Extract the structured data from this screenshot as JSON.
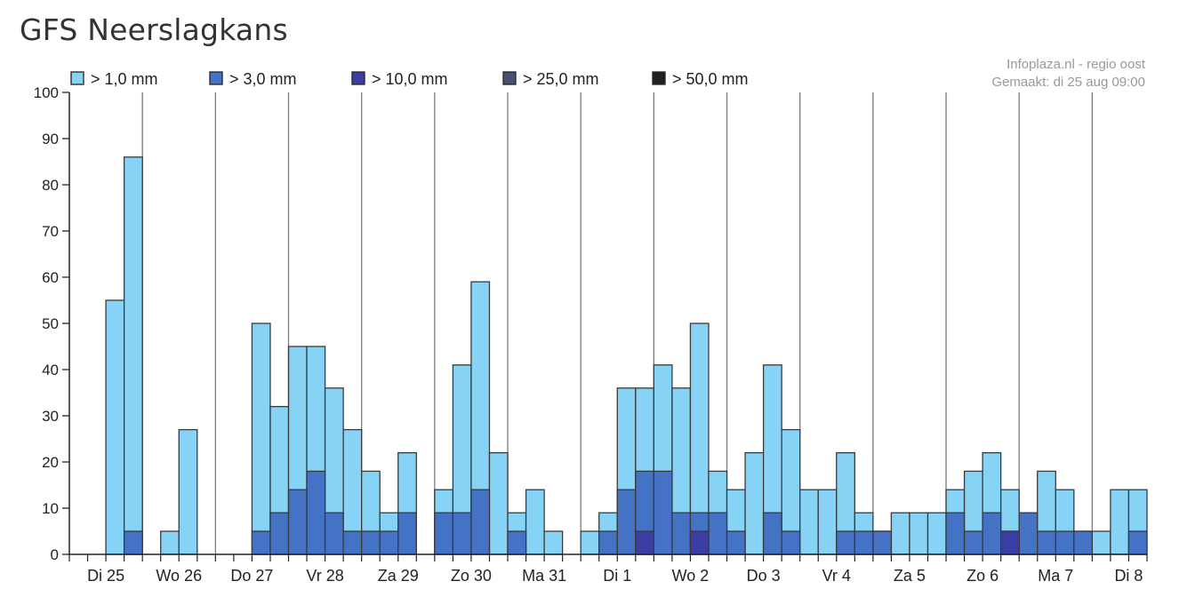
{
  "title": "GFS Neerslagkans",
  "source": "Infoplaza.nl - regio oost",
  "made": "Gemaakt: di 25 aug 09:00",
  "colors": {
    "gt1": "#87d3f5",
    "gt3": "#4472c4",
    "gt10": "#3a3ea4",
    "gt25": "#4a5070",
    "gt50": "#222222"
  },
  "chart_data": {
    "type": "bar",
    "stacked": "overlaid",
    "title": "GFS Neerslagkans",
    "xlabel": "",
    "ylabel": "",
    "ylim": [
      0,
      100
    ],
    "yticks": [
      0,
      10,
      20,
      30,
      40,
      50,
      60,
      70,
      80,
      90,
      100
    ],
    "grid": "vertical day separators",
    "legend_position": "top-left",
    "day_labels": [
      "Di 25",
      "Wo 26",
      "Do 27",
      "Vr 28",
      "Za 29",
      "Zo 30",
      "Ma 31",
      "Di 1",
      "Wo 2",
      "Do 3",
      "Vr 4",
      "Za 5",
      "Zo 6",
      "Ma 7",
      "Di 8"
    ],
    "series": [
      {
        "name": "> 1,0 mm",
        "color_key": "gt1",
        "values": [
          0,
          55,
          86,
          0,
          5,
          27,
          0,
          0,
          0,
          50,
          32,
          45,
          45,
          36,
          27,
          18,
          9,
          22,
          0,
          14,
          41,
          59,
          22,
          9,
          14,
          5,
          0,
          5,
          9,
          36,
          36,
          41,
          36,
          50,
          18,
          14,
          22,
          41,
          27,
          14,
          14,
          22,
          9,
          5,
          9,
          9,
          9,
          14,
          18,
          22,
          14,
          9,
          18,
          14,
          5,
          5,
          14,
          14
        ]
      },
      {
        "name": "> 3,0 mm",
        "color_key": "gt3",
        "values": [
          0,
          0,
          5,
          0,
          0,
          0,
          0,
          0,
          0,
          5,
          9,
          14,
          18,
          9,
          5,
          5,
          5,
          9,
          0,
          9,
          9,
          14,
          0,
          5,
          0,
          0,
          0,
          0,
          5,
          14,
          18,
          18,
          9,
          9,
          9,
          5,
          0,
          9,
          5,
          0,
          0,
          5,
          5,
          5,
          0,
          0,
          0,
          9,
          5,
          9,
          5,
          9,
          5,
          5,
          5,
          0,
          0,
          5
        ]
      },
      {
        "name": "> 10,0 mm",
        "color_key": "gt10",
        "values": [
          0,
          0,
          0,
          0,
          0,
          0,
          0,
          0,
          0,
          0,
          0,
          0,
          0,
          0,
          0,
          0,
          0,
          0,
          0,
          0,
          0,
          0,
          0,
          0,
          0,
          0,
          0,
          0,
          0,
          0,
          5,
          0,
          0,
          5,
          0,
          0,
          0,
          0,
          0,
          0,
          0,
          0,
          0,
          0,
          0,
          0,
          0,
          0,
          0,
          0,
          5,
          0,
          0,
          0,
          0,
          0,
          0,
          0
        ]
      },
      {
        "name": "> 25,0 mm",
        "color_key": "gt25",
        "values": [
          0,
          0,
          0,
          0,
          0,
          0,
          0,
          0,
          0,
          0,
          0,
          0,
          0,
          0,
          0,
          0,
          0,
          0,
          0,
          0,
          0,
          0,
          0,
          0,
          0,
          0,
          0,
          0,
          0,
          0,
          0,
          0,
          0,
          0,
          0,
          0,
          0,
          0,
          0,
          0,
          0,
          0,
          0,
          0,
          0,
          0,
          0,
          0,
          0,
          0,
          0,
          0,
          0,
          0,
          0,
          0,
          0,
          0
        ]
      },
      {
        "name": "> 50,0 mm",
        "color_key": "gt50",
        "values": [
          0,
          0,
          0,
          0,
          0,
          0,
          0,
          0,
          0,
          0,
          0,
          0,
          0,
          0,
          0,
          0,
          0,
          0,
          0,
          0,
          0,
          0,
          0,
          0,
          0,
          0,
          0,
          0,
          0,
          0,
          0,
          0,
          0,
          0,
          0,
          0,
          0,
          0,
          0,
          0,
          0,
          0,
          0,
          0,
          0,
          0,
          0,
          0,
          0,
          0,
          0,
          0,
          0,
          0,
          0,
          0,
          0,
          0
        ]
      }
    ]
  }
}
